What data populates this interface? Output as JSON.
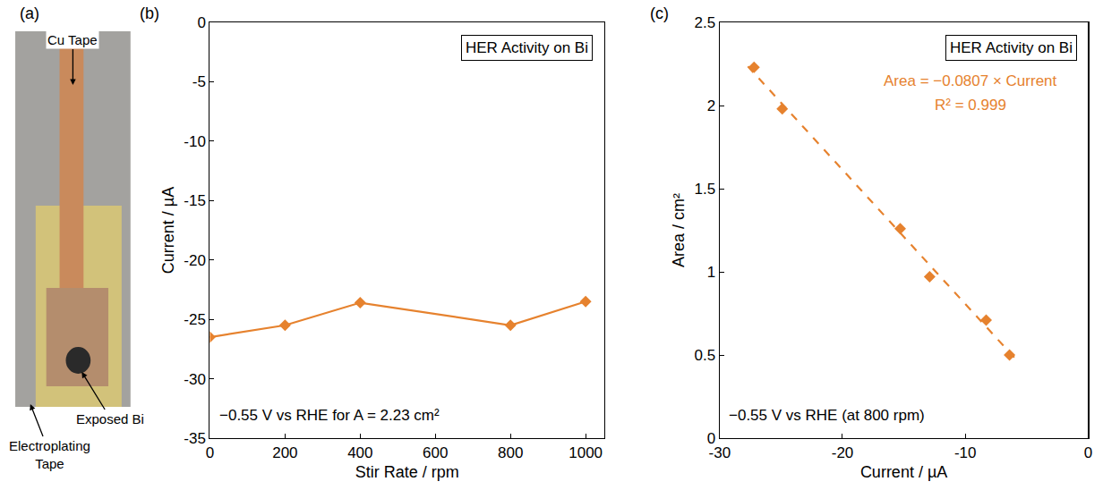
{
  "panel_a": {
    "panel": "(a)",
    "labels": [
      "Cu Tape",
      "Exposed Bi",
      "Electroplating Tape"
    ]
  },
  "chart_data": [
    {
      "type": "line",
      "panel": "(b)",
      "title": "HER Activity on Bi",
      "x_label": "Stir Rate / rpm",
      "y_label": "Current / µA",
      "x": [
        0,
        200,
        400,
        800,
        1000
      ],
      "values": [
        -26.5,
        -25.5,
        -23.6,
        -25.5,
        -23.5
      ],
      "color": "#e6822e",
      "marker": "diamond",
      "xlim": [
        0,
        1050
      ],
      "xticks": [
        0,
        200,
        400,
        600,
        800,
        1000
      ],
      "ylim": [
        -35,
        0
      ],
      "yticks": [
        -35,
        -30,
        -25,
        -20,
        -15,
        -10,
        -5,
        0
      ],
      "grid": false,
      "annotations": [
        "−0.55 V vs RHE for A = 2.23 cm²"
      ]
    },
    {
      "type": "scatter",
      "panel": "(c)",
      "title": "HER Activity on Bi",
      "x_label": "Current / µA",
      "y_label": "Area / cm²",
      "series": [
        {
          "type": "scatter",
          "marker": "diamond",
          "color": "#e6822e",
          "x": [
            -27.2,
            -24.9,
            -15.3,
            -12.9,
            -8.3,
            -6.4
          ],
          "values": [
            2.23,
            1.98,
            1.26,
            0.97,
            0.71,
            0.5
          ]
        },
        {
          "type": "line",
          "line_style": "dash",
          "color": "#e6822e",
          "x": [
            -27.7,
            -6.0
          ],
          "values": [
            2.235,
            0.484
          ]
        }
      ],
      "xlim": [
        -30,
        0
      ],
      "xticks": [
        -30,
        -20,
        -10,
        0
      ],
      "ylim": [
        0,
        2.5
      ],
      "yticks": [
        0,
        0.5,
        1,
        1.5,
        2,
        2.5
      ],
      "grid": false,
      "annotations": [
        "Area = −0.0807 × Current",
        "R² = 0.999",
        "−0.55 V vs RHE (at 800 rpm)"
      ]
    }
  ]
}
